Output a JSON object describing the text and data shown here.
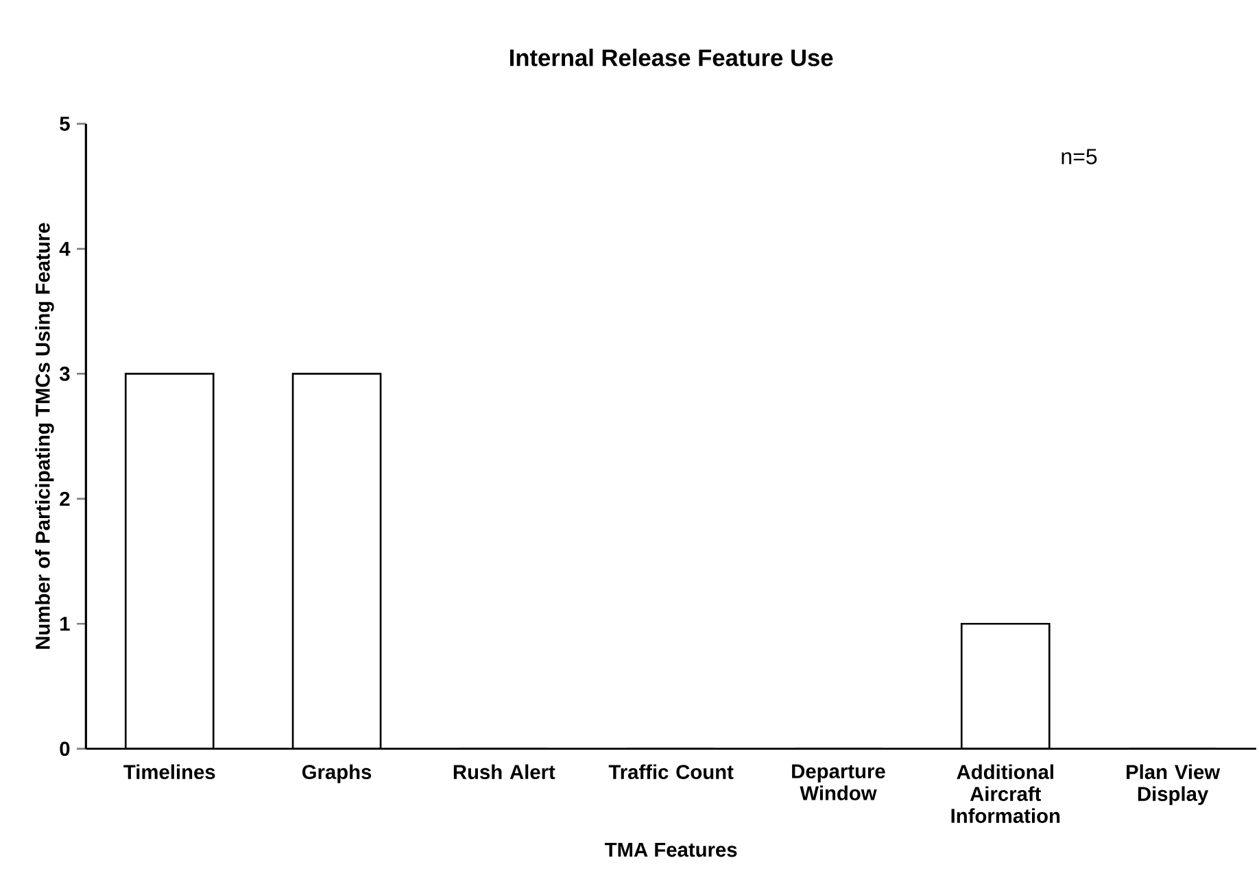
{
  "chart_data": {
    "type": "bar",
    "title": "Internal Release Feature Use",
    "xlabel": "TMA Features",
    "ylabel": "Number of Participating TMCs Using Feature",
    "categories": [
      "Timelines",
      "Graphs",
      "Rush Alert",
      "Traffic Count",
      "Departure Window",
      "Additional Aircraft Information",
      "Plan View Display"
    ],
    "values": [
      3,
      3,
      0,
      0,
      0,
      1,
      0
    ],
    "color": "#ffffff",
    "ylim": [
      0,
      5
    ],
    "yticks": [
      0,
      1,
      2,
      3,
      4,
      5
    ],
    "annotations": [
      "n=5"
    ],
    "grid": false
  }
}
